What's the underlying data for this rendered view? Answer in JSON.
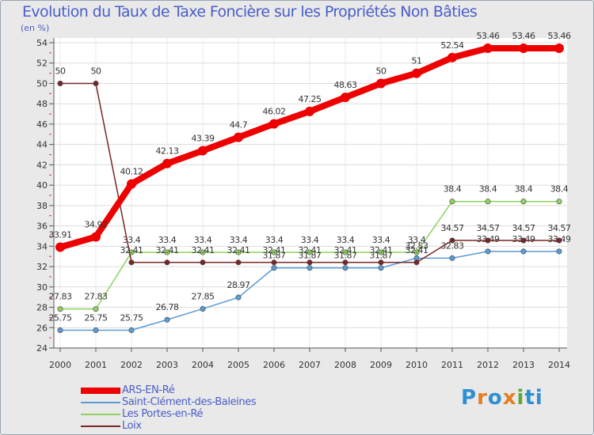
{
  "chart_data": {
    "type": "line",
    "title": "Evolution du Taux de Taxe Foncière sur les Propriétés Non Bâties",
    "ylabel": "(en %)",
    "xlabel": "",
    "ylim": [
      24,
      54
    ],
    "ytick_step": 2,
    "x": [
      "2000",
      "2001",
      "2002",
      "2003",
      "2004",
      "2005",
      "2006",
      "2007",
      "2008",
      "2009",
      "2010",
      "2011",
      "2012",
      "2013",
      "2014"
    ],
    "series": [
      {
        "name": "ARS-EN-Ré",
        "color": "#ee0000",
        "highlight": true,
        "values": [
          33.91,
          34.92,
          40.12,
          42.13,
          43.39,
          44.7,
          46.02,
          47.25,
          48.63,
          50,
          51,
          52.54,
          53.46,
          53.46,
          53.46
        ],
        "labels": [
          "33.91",
          "34.92",
          "40.12",
          "42.13",
          "43.39",
          "44.7",
          "46.02",
          "47.25",
          "48.63",
          "50",
          "51",
          "52.54",
          "53.46",
          "53.46",
          "53.46"
        ]
      },
      {
        "name": "Saint-Clément-des-Baleines",
        "color": "#5b9bd5",
        "values": [
          25.75,
          25.75,
          25.75,
          26.78,
          27.85,
          28.97,
          31.87,
          31.87,
          31.87,
          31.87,
          32.83,
          32.83,
          33.49,
          33.49,
          33.49
        ],
        "labels": [
          "25.75",
          "25.75",
          "25.75",
          "26.78",
          "27.85",
          "28.97",
          "31.87",
          "31.87",
          "31.87",
          "31.87",
          "32.83",
          "32.83",
          "33.49",
          "33.49",
          "33.49"
        ]
      },
      {
        "name": "Les Portes-en-Ré",
        "color": "#8ed35f",
        "values": [
          27.83,
          27.83,
          33.4,
          33.4,
          33.4,
          33.4,
          33.4,
          33.4,
          33.4,
          33.4,
          33.4,
          38.4,
          38.4,
          38.4,
          38.4
        ],
        "labels": [
          "27.83",
          "27.83",
          "33.4",
          "33.4",
          "33.4",
          "33.4",
          "33.4",
          "33.4",
          "33.4",
          "33.4",
          "33.4",
          "38.4",
          "38.4",
          "38.4",
          "38.4"
        ]
      },
      {
        "name": "Loix",
        "color": "#7a2626",
        "values": [
          50,
          50,
          32.41,
          32.41,
          32.41,
          32.41,
          32.41,
          32.41,
          32.41,
          32.41,
          32.41,
          34.57,
          34.57,
          34.57,
          34.57
        ],
        "labels": [
          "50",
          "50",
          "32.41",
          "32.41",
          "32.41",
          "32.41",
          "32.41",
          "32.41",
          "32.41",
          "32.41",
          "32.41",
          "34.57",
          "34.57",
          "34.57",
          "34.57"
        ]
      }
    ],
    "legend_position": "bottom-left"
  },
  "logo": {
    "parts": [
      "P",
      "r",
      "o",
      "x",
      "i",
      "ti"
    ]
  }
}
